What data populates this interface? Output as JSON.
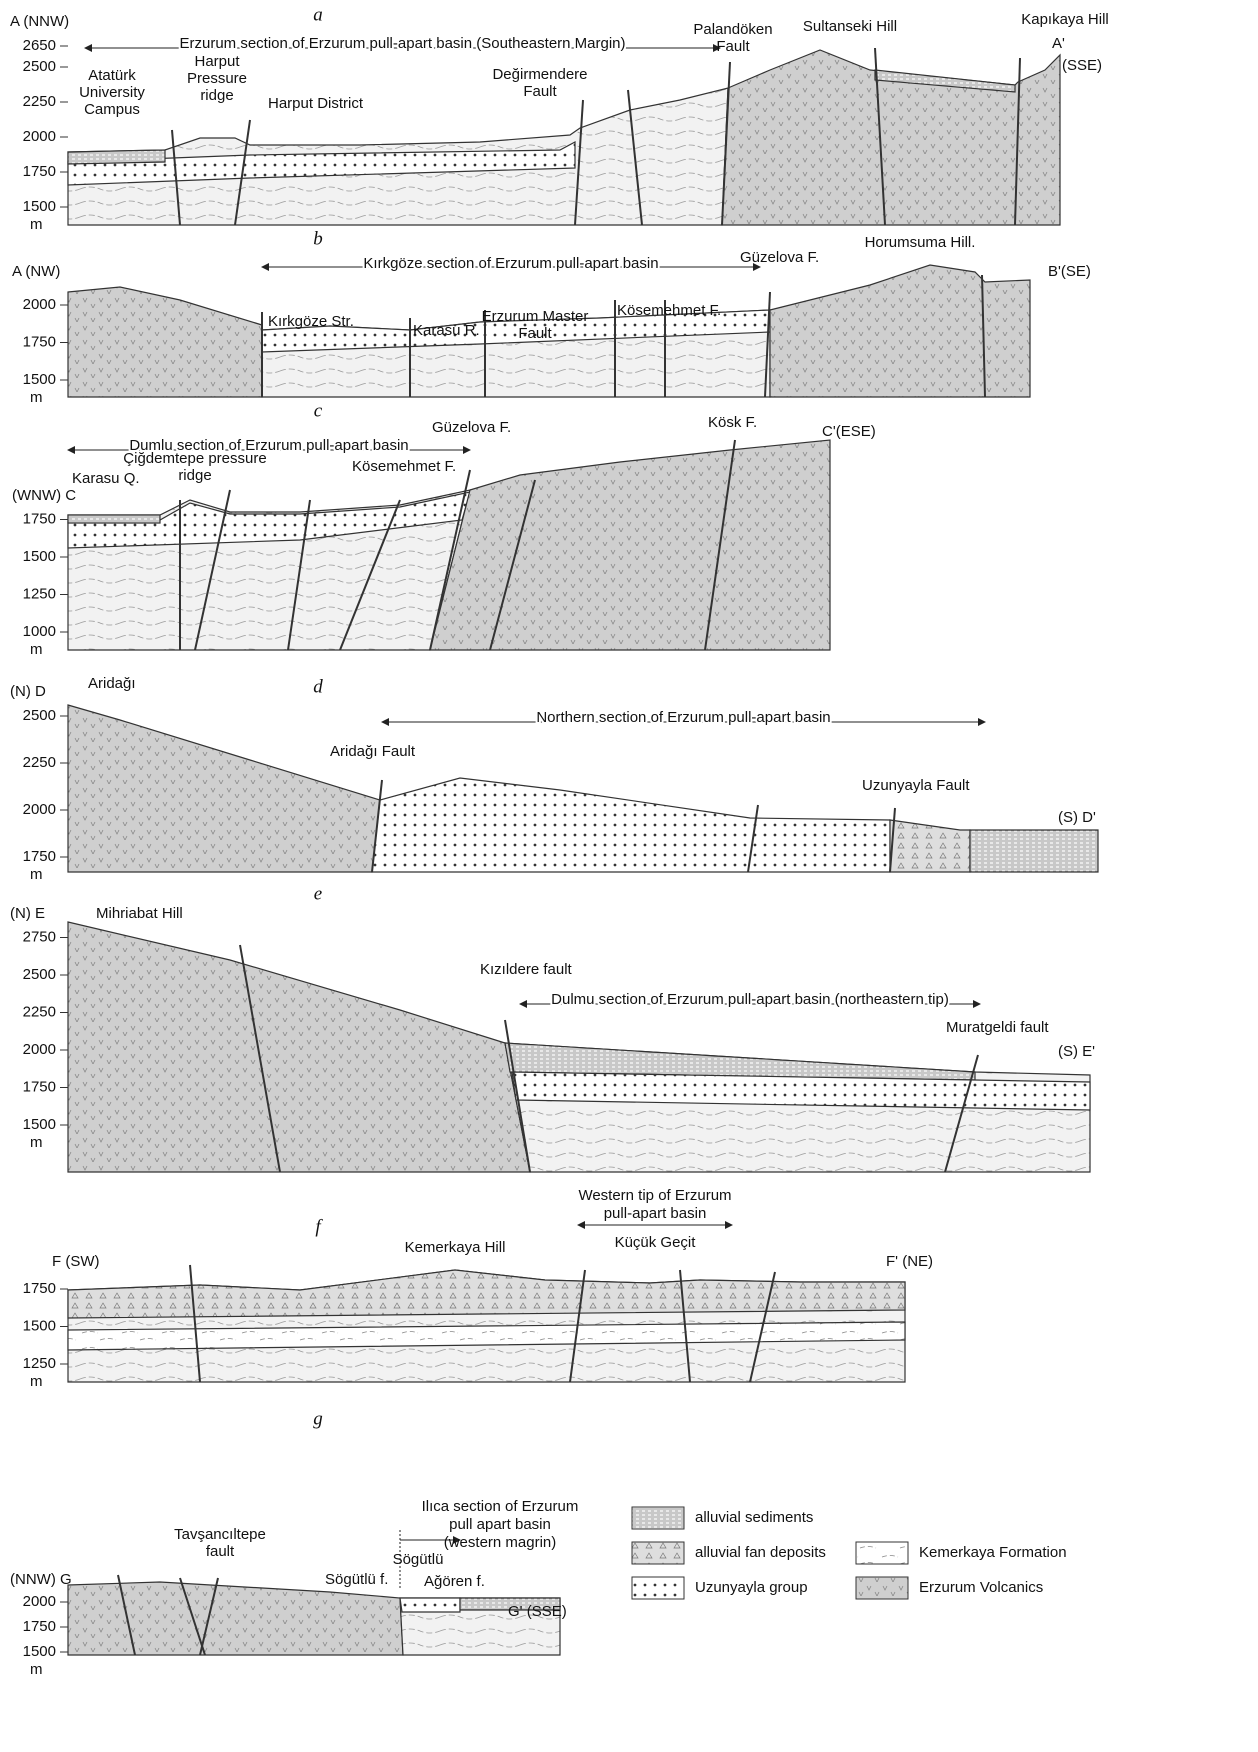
{
  "figure": {
    "panels": [
      {
        "letter": "a",
        "unit": "m",
        "ticks": [
          2650,
          2500,
          2250,
          2000,
          1750,
          1500
        ],
        "section": [
          "Erzurum section of Erzurum pull-apart basin (Southeastern Margin)"
        ],
        "labels": [
          "A (NNW)",
          "A'",
          "(SSE)",
          [
            "Atatürk",
            "University",
            "Campus"
          ],
          [
            "Harput",
            "Pressure",
            "ridge"
          ],
          "Harput District",
          [
            "Değirmendere",
            "Fault"
          ],
          [
            "Palandöken",
            "Fault"
          ],
          "Sultanseki Hill",
          "Kapıkaya Hill"
        ]
      },
      {
        "letter": "b",
        "unit": "m",
        "ticks": [
          2000,
          1750,
          1500
        ],
        "section": [
          "Kırkgöze section of Erzurum pull-apart basin"
        ],
        "labels": [
          "A (NW)",
          "B'(SE)",
          "Kırkgöze Str.",
          "Karasu R.",
          [
            "Erzurum Master",
            "Fault"
          ],
          "Kösemehmet F.",
          "Güzelova F.",
          "Horumsuma Hill."
        ]
      },
      {
        "letter": "c",
        "unit": "m",
        "ticks": [
          1750,
          1500,
          1250,
          1000
        ],
        "section": [
          "Dumlu section of Erzurum pull-apart basin"
        ],
        "labels": [
          "(WNW) C",
          "C'(ESE)",
          "Güzelova F.",
          "Kösk F.",
          "Karasu Q.",
          [
            "Çiğdemtepe pressure",
            "ridge"
          ],
          "Kösemehmet F."
        ]
      },
      {
        "letter": "d",
        "unit": "m",
        "ticks": [
          2500,
          2250,
          2000,
          1750
        ],
        "section": [
          "Northern section of Erzurum pull-apart basin"
        ],
        "labels": [
          "(N) D",
          "(S) D'",
          "Aridağı",
          "Aridağı Fault",
          "Uzunyayla Fault"
        ]
      },
      {
        "letter": "e",
        "unit": "m",
        "ticks": [
          2750,
          2500,
          2250,
          2000,
          1750,
          1500
        ],
        "section": [
          "Dulmu section of Erzurum pull-apart basin (northeastern tip)"
        ],
        "labels": [
          "(N) E",
          "Mihriabat Hill",
          "(S) E'",
          "Kızıldere fault",
          "Muratgeldi fault"
        ]
      },
      {
        "letter": "f",
        "unit": "m",
        "ticks": [
          1750,
          1500,
          1250
        ],
        "section": [
          "Western tip of Erzurum",
          "pull-apart basin"
        ],
        "labels": [
          "F (SW)",
          "F' (NE)",
          "Kemerkaya Hill",
          "Küçük Geçit"
        ]
      },
      {
        "letter": "g",
        "unit": "m",
        "ticks": [
          2000,
          1750,
          1500
        ],
        "section": [
          "Ilıca section of Erzurum",
          "pull apart basin",
          "(western magrin)"
        ],
        "labels": [
          "(NNW) G",
          "G' (SSE)",
          [
            "Tavşancıltepe",
            "fault"
          ],
          "Sögütlü f.",
          "Sögütlü",
          "Ağören f."
        ]
      }
    ],
    "legend": [
      "alluvial sediments",
      "alluvial fan deposits",
      "Uzunyayla group",
      "Kemerkaya Formation",
      "Erzurum Volcanics"
    ]
  }
}
